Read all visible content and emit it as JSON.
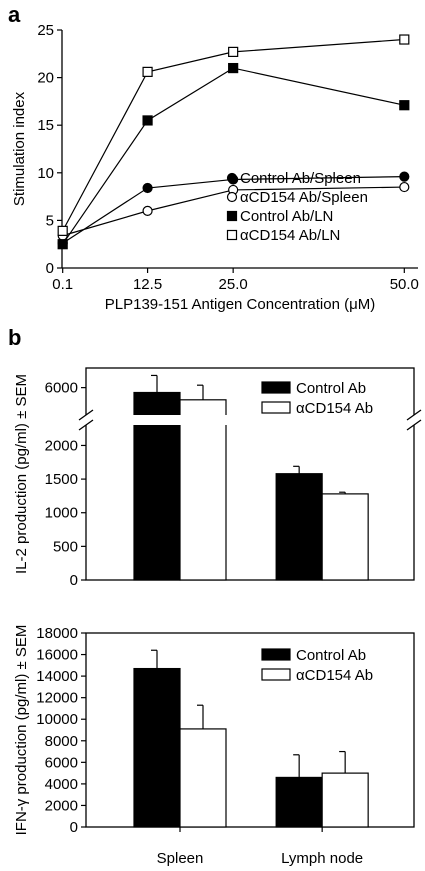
{
  "panel_labels": [
    "a",
    "b"
  ],
  "chart_data": [
    {
      "type": "line",
      "panel": "a",
      "xlabel": "PLP139-151 Antigen Concentration (μM)",
      "ylabel": "Stimulation index",
      "x": [
        0.1,
        12.5,
        25.0,
        50.0
      ],
      "x_tick_labels": [
        "0.1",
        "12.5",
        "25.0",
        "50.0"
      ],
      "y_ticks": [
        0,
        5,
        10,
        15,
        20,
        25
      ],
      "xlim": [
        0,
        52
      ],
      "ylim": [
        0,
        25
      ],
      "legend_position": "bottom-right",
      "series": [
        {
          "name": "Control Ab/Spleen",
          "marker": "filled-circle",
          "values": [
            2.6,
            8.4,
            9.3,
            9.6
          ]
        },
        {
          "name": "αCD154 Ab/Spleen",
          "marker": "open-circle",
          "values": [
            3.4,
            6.0,
            8.2,
            8.5
          ]
        },
        {
          "name": "Control Ab/LN",
          "marker": "filled-square",
          "values": [
            2.5,
            15.5,
            21.0,
            17.1
          ]
        },
        {
          "name": "αCD154 Ab/LN",
          "marker": "open-square",
          "values": [
            3.9,
            20.6,
            22.7,
            24.0
          ]
        }
      ],
      "grid": false
    },
    {
      "type": "bar",
      "panel": "b-top",
      "ylabel": "IL-2 production (pg/ml) ± SEM",
      "categories": [
        "Spleen",
        "Lymph node"
      ],
      "y_ticks": [
        0,
        500,
        1000,
        1500,
        2000
      ],
      "y_break_tick": 6000,
      "axis_break": true,
      "legend_position": "top-right",
      "series": [
        {
          "name": "Control Ab",
          "fill": "#000000",
          "values": [
            5800,
            1580
          ],
          "errors": [
            700,
            110
          ]
        },
        {
          "name": "αCD154 Ab",
          "fill": "#ffffff",
          "values": [
            5500,
            1280
          ],
          "errors": [
            600,
            25
          ]
        }
      ],
      "grid": false
    },
    {
      "type": "bar",
      "panel": "b-bottom",
      "ylabel": "IFN-γ production (pg/ml) ± SEM",
      "categories": [
        "Spleen",
        "Lymph node"
      ],
      "y_ticks": [
        0,
        2000,
        4000,
        6000,
        8000,
        10000,
        12000,
        14000,
        16000,
        18000
      ],
      "ylim": [
        0,
        18000
      ],
      "legend_position": "top-right",
      "series": [
        {
          "name": "Control Ab",
          "fill": "#000000",
          "values": [
            14700,
            4600
          ],
          "errors": [
            1700,
            2100
          ]
        },
        {
          "name": "αCD154 Ab",
          "fill": "#ffffff",
          "values": [
            9100,
            5000
          ],
          "errors": [
            2200,
            2000
          ]
        }
      ],
      "grid": false
    }
  ]
}
